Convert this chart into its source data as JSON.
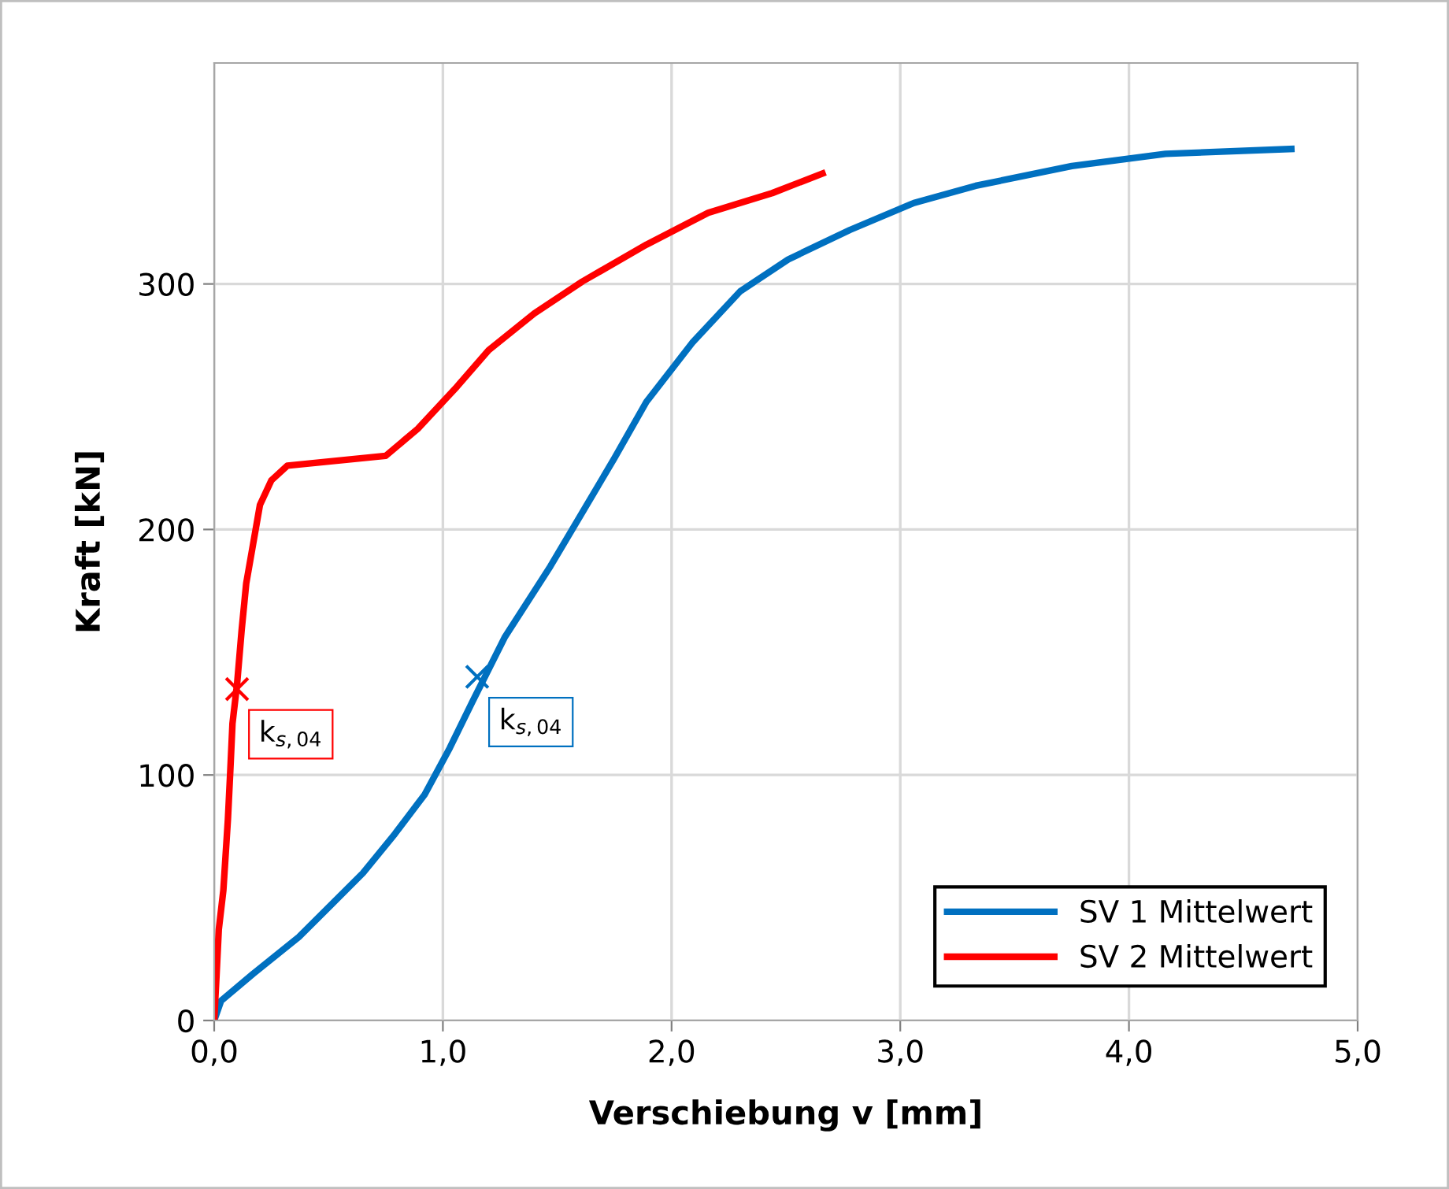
{
  "chart_data": {
    "type": "line",
    "xlabel": "Verschiebung v [mm]",
    "ylabel": "Kraft [kN]",
    "xlim": [
      0,
      5
    ],
    "ylim": [
      0,
      390
    ],
    "xticks": [
      {
        "value": 0,
        "label": "0,0"
      },
      {
        "value": 1,
        "label": "1,0"
      },
      {
        "value": 2,
        "label": "2,0"
      },
      {
        "value": 3,
        "label": "3,0"
      },
      {
        "value": 4,
        "label": "4,0"
      },
      {
        "value": 5,
        "label": "5,0"
      }
    ],
    "yticks": [
      0,
      100,
      200,
      300
    ],
    "grid": true,
    "legend": "bottom right",
    "marker": "none",
    "line_style": "solid",
    "series": [
      {
        "name": "SV 1 Mittelwert",
        "color": "#0070c0",
        "x": [
          0,
          0.03,
          0.17,
          0.37,
          0.51,
          0.65,
          0.79,
          0.92,
          1.03,
          1.13,
          1.2,
          1.27,
          1.47,
          1.61,
          1.75,
          1.89,
          2.09,
          2.3,
          2.51,
          2.78,
          3.06,
          3.33,
          3.75,
          4.16,
          4.71
        ],
        "values": [
          0,
          8,
          19,
          34,
          47,
          60,
          76,
          92,
          111,
          130,
          143,
          156,
          185,
          207,
          229,
          252,
          276,
          297,
          310,
          322,
          333,
          340,
          348,
          353,
          355
        ]
      },
      {
        "name": "SV 2 Mittelwert",
        "color": "#ff0000",
        "x": [
          0,
          0.01,
          0.02,
          0.04,
          0.06,
          0.07,
          0.08,
          0.1,
          0.12,
          0.14,
          0.17,
          0.2,
          0.25,
          0.32,
          0.75,
          0.89,
          1.06,
          1.2,
          1.4,
          1.61,
          1.89,
          2.16,
          2.44,
          2.66
        ],
        "values": [
          0,
          18,
          37,
          53,
          82,
          101,
          121,
          137,
          159,
          178,
          194,
          210,
          220,
          226,
          230,
          241,
          258,
          273,
          288,
          301,
          316,
          329,
          337,
          345
        ]
      }
    ],
    "annotations": [
      {
        "text": "k$_{s,04}$",
        "x": 1.15,
        "y": 140
      },
      {
        "text": "k$_{s,04}$",
        "x": 0.1,
        "y": 135
      }
    ]
  }
}
